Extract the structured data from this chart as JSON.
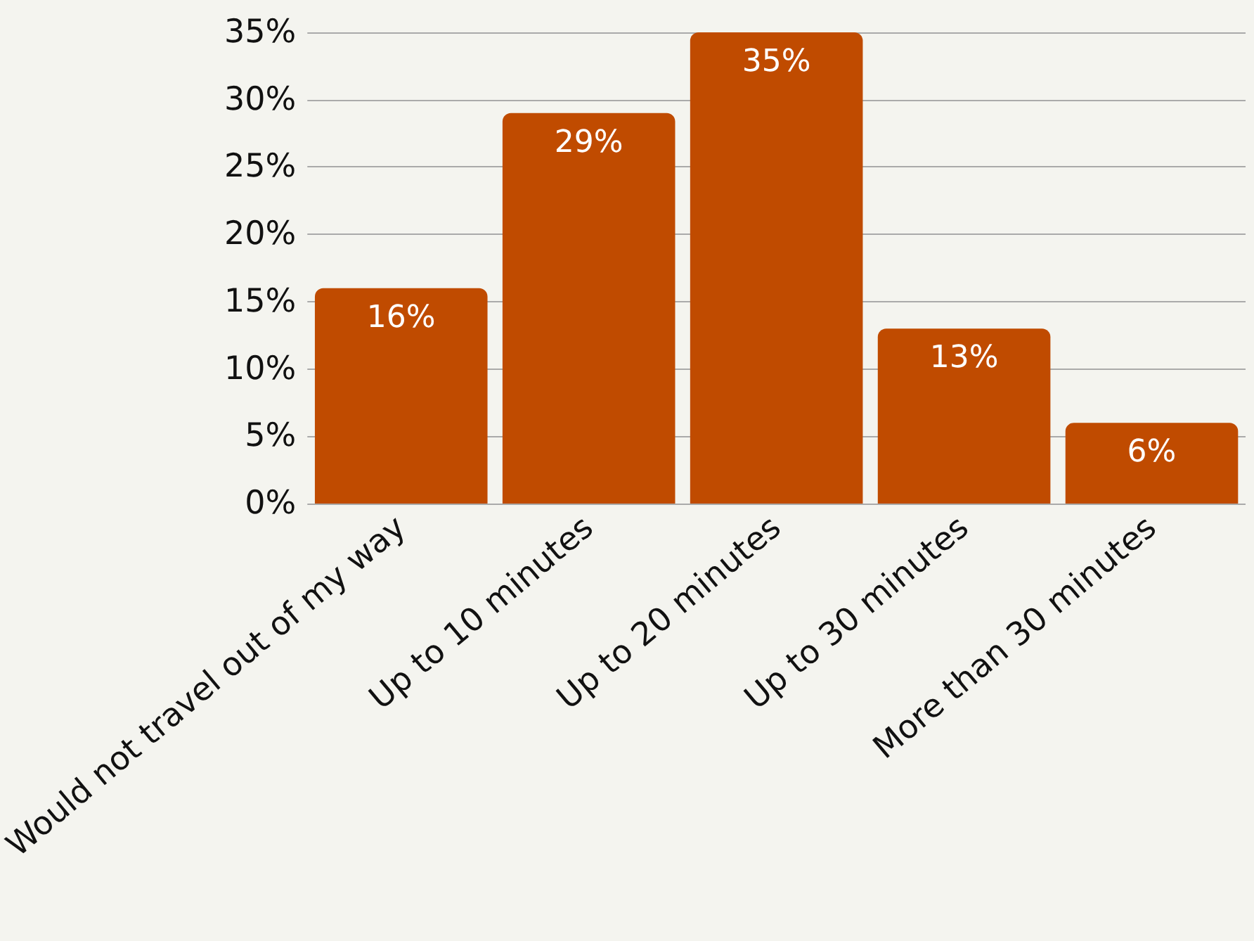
{
  "chart_data": {
    "type": "bar",
    "categories": [
      "Would not travel out of my way",
      "Up to 10 minutes",
      "Up to 20 minutes",
      "Up to 30 minutes",
      "More than 30 minutes"
    ],
    "values": [
      16,
      29,
      35,
      13,
      6
    ],
    "value_labels": [
      "16%",
      "29%",
      "35%",
      "13%",
      "6%"
    ],
    "color": "#c04b00",
    "ylim": [
      0,
      35
    ],
    "yticks": [
      {
        "value": 0,
        "label": "0%"
      },
      {
        "value": 5,
        "label": "5%"
      },
      {
        "value": 10,
        "label": "10%"
      },
      {
        "value": 15,
        "label": "15%"
      },
      {
        "value": 20,
        "label": "20%"
      },
      {
        "value": 25,
        "label": "25%"
      },
      {
        "value": 30,
        "label": "30%"
      },
      {
        "value": 35,
        "label": "35%"
      }
    ],
    "grid": "y"
  }
}
